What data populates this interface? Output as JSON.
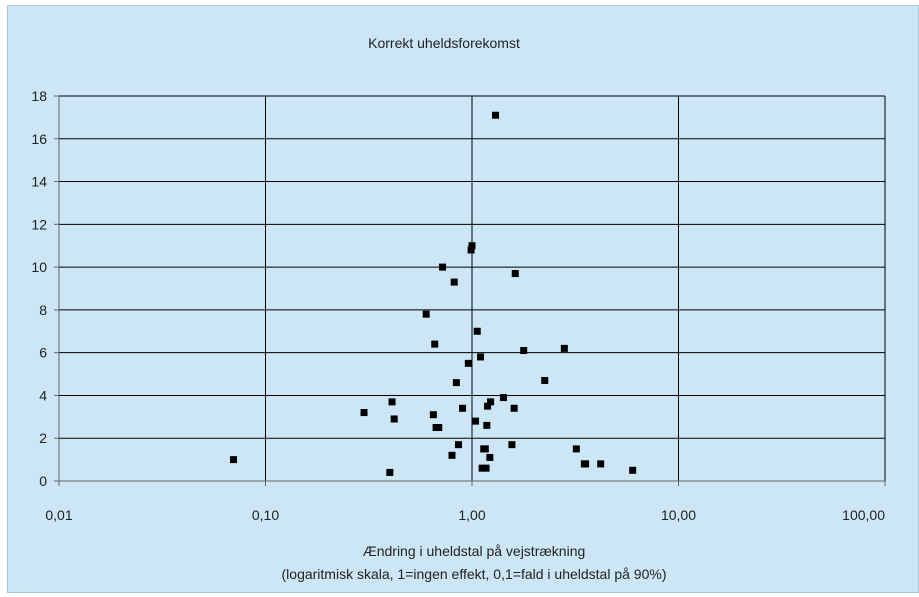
{
  "colors": {
    "background": "#cce6f5",
    "grid": "#000000",
    "marker": "#000000"
  },
  "chart_data": {
    "type": "scatter",
    "title": "Korrekt uheldsforekomst",
    "xlabel": "Ændring i uheldstal på vejstrækning",
    "xlabel_note": "(logaritmisk skala, 1=ingen effekt, 0,1=fald i uheldstal på 90%)",
    "ylabel": "",
    "x_scale": "log",
    "xlim": [
      0.01,
      100
    ],
    "ylim": [
      0,
      18
    ],
    "x_ticks": [
      0.01,
      0.1,
      1,
      10,
      100
    ],
    "x_tick_labels": [
      "0,01",
      "0,10",
      "1,00",
      "10,00",
      "100,00"
    ],
    "y_ticks": [
      0,
      2,
      4,
      6,
      8,
      10,
      12,
      14,
      16,
      18
    ],
    "y_tick_labels": [
      "0",
      "2",
      "4",
      "6",
      "8",
      "10",
      "12",
      "14",
      "16",
      "18"
    ],
    "grid": true,
    "legend": "none",
    "series": [
      {
        "points": [
          [
            0.07,
            1.0
          ],
          [
            0.3,
            3.2
          ],
          [
            0.4,
            0.4
          ],
          [
            0.41,
            3.7
          ],
          [
            0.42,
            2.9
          ],
          [
            0.6,
            7.8
          ],
          [
            0.65,
            3.1
          ],
          [
            0.66,
            6.4
          ],
          [
            0.67,
            2.5
          ],
          [
            0.69,
            2.5
          ],
          [
            0.72,
            10.0
          ],
          [
            0.8,
            1.2
          ],
          [
            0.82,
            9.3
          ],
          [
            0.84,
            4.6
          ],
          [
            0.86,
            1.7
          ],
          [
            0.9,
            3.4
          ],
          [
            0.96,
            5.5
          ],
          [
            0.99,
            10.8
          ],
          [
            1.0,
            11.0
          ],
          [
            1.04,
            2.8
          ],
          [
            1.06,
            7.0
          ],
          [
            1.1,
            5.8
          ],
          [
            1.12,
            0.6
          ],
          [
            1.14,
            1.5
          ],
          [
            1.16,
            1.5
          ],
          [
            1.17,
            0.6
          ],
          [
            1.18,
            2.6
          ],
          [
            1.19,
            3.5
          ],
          [
            1.22,
            1.1
          ],
          [
            1.23,
            3.7
          ],
          [
            1.3,
            17.1
          ],
          [
            1.42,
            3.9
          ],
          [
            1.56,
            1.7
          ],
          [
            1.6,
            3.4
          ],
          [
            1.62,
            9.7
          ],
          [
            1.78,
            6.1
          ],
          [
            2.25,
            4.7
          ],
          [
            2.8,
            6.2
          ],
          [
            3.2,
            1.5
          ],
          [
            3.5,
            0.8
          ],
          [
            3.55,
            0.8
          ],
          [
            4.2,
            0.8
          ],
          [
            6.0,
            0.5
          ]
        ]
      }
    ]
  }
}
